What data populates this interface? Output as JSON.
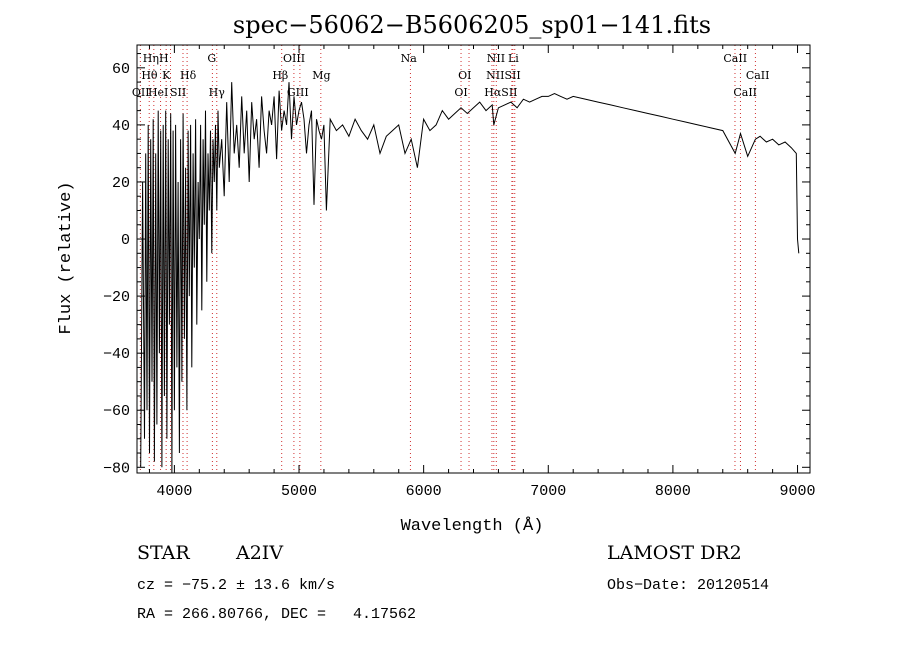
{
  "chart_data": {
    "type": "line",
    "title": "spec−56062−B5606205_sp01−141.fits",
    "xlabel": "Wavelength (Å)",
    "ylabel": "Flux (relative)",
    "xlim": [
      3700,
      9100
    ],
    "ylim": [
      -82,
      68
    ],
    "xticks": [
      4000,
      5000,
      6000,
      7000,
      8000,
      9000
    ],
    "xtick_labels": [
      "4000",
      "5000",
      "6000",
      "7000",
      "8000",
      "9000"
    ],
    "yticks": [
      -80,
      -60,
      -40,
      -20,
      0,
      20,
      40,
      60
    ],
    "ytick_labels": [
      "−80",
      "−60",
      "−40",
      "−20",
      "0",
      "20",
      "40",
      "60"
    ],
    "grid": false,
    "series": [
      {
        "color": "#000000",
        "x": [
          3730,
          3745,
          3760,
          3770,
          3780,
          3790,
          3800,
          3810,
          3820,
          3830,
          3840,
          3850,
          3860,
          3870,
          3880,
          3890,
          3900,
          3910,
          3920,
          3930,
          3940,
          3950,
          3960,
          3970,
          3980,
          3990,
          4000,
          4010,
          4020,
          4030,
          4040,
          4050,
          4060,
          4070,
          4080,
          4090,
          4100,
          4110,
          4120,
          4130,
          4140,
          4150,
          4160,
          4170,
          4180,
          4190,
          4200,
          4210,
          4220,
          4230,
          4240,
          4250,
          4260,
          4270,
          4280,
          4290,
          4300,
          4310,
          4320,
          4330,
          4340,
          4350,
          4360,
          4380,
          4400,
          4420,
          4440,
          4460,
          4480,
          4500,
          4520,
          4540,
          4560,
          4580,
          4600,
          4620,
          4640,
          4660,
          4680,
          4700,
          4720,
          4740,
          4760,
          4780,
          4800,
          4820,
          4840,
          4860,
          4880,
          4900,
          4920,
          4940,
          4960,
          4980,
          5000,
          5020,
          5040,
          5060,
          5080,
          5100,
          5120,
          5140,
          5160,
          5180,
          5200,
          5220,
          5250,
          5300,
          5350,
          5400,
          5450,
          5500,
          5550,
          5600,
          5650,
          5700,
          5750,
          5800,
          5850,
          5900,
          5950,
          6000,
          6050,
          6100,
          6150,
          6200,
          6250,
          6300,
          6350,
          6400,
          6450,
          6500,
          6550,
          6563,
          6600,
          6650,
          6700,
          6750,
          6800,
          6850,
          6900,
          6950,
          7000,
          7050,
          7100,
          7150,
          7200,
          7300,
          7400,
          7500,
          7600,
          7700,
          7800,
          7900,
          8000,
          8100,
          8200,
          8300,
          8400,
          8500,
          8542,
          8600,
          8662,
          8700,
          8750,
          8800,
          8850,
          8900,
          8950,
          8990,
          9000,
          9010
        ],
        "y": [
          -80,
          20,
          -70,
          30,
          -60,
          40,
          -75,
          35,
          -50,
          42,
          -78,
          30,
          -65,
          45,
          -40,
          38,
          -80,
          40,
          -55,
          45,
          -70,
          35,
          -30,
          44,
          -82,
          38,
          -60,
          40,
          -45,
          20,
          -75,
          35,
          -50,
          44,
          -35,
          25,
          -60,
          38,
          -20,
          40,
          -45,
          30,
          -10,
          42,
          -30,
          20,
          0,
          40,
          -25,
          35,
          5,
          45,
          -15,
          30,
          10,
          38,
          -5,
          35,
          20,
          40,
          10,
          45,
          25,
          35,
          15,
          48,
          20,
          55,
          30,
          40,
          25,
          50,
          30,
          45,
          20,
          48,
          35,
          42,
          25,
          50,
          38,
          30,
          45,
          40,
          50,
          28,
          52,
          38,
          45,
          40,
          55,
          35,
          50,
          40,
          45,
          48,
          42,
          30,
          40,
          45,
          12,
          42,
          38,
          35,
          40,
          10,
          42,
          38,
          40,
          36,
          42,
          38,
          35,
          40,
          30,
          36,
          38,
          40,
          30,
          35,
          25,
          42,
          38,
          40,
          45,
          42,
          44,
          46,
          44,
          46,
          48,
          45,
          47,
          40,
          46,
          47,
          48,
          46,
          49,
          48,
          49,
          50,
          50,
          51,
          50,
          49,
          50,
          49,
          48,
          47,
          46,
          45,
          44,
          43,
          42,
          41,
          40,
          39,
          38,
          30,
          37,
          29,
          35,
          36,
          34,
          35,
          33,
          34,
          32,
          30,
          0,
          -5
        ]
      }
    ],
    "line_marks": [
      {
        "label": "OII",
        "x": 3727
      },
      {
        "label": "Hθ",
        "x": 3798
      },
      {
        "label": "Hη",
        "x": 3835
      },
      {
        "label": "HeI",
        "x": 3889
      },
      {
        "label": "K",
        "x": 3934
      },
      {
        "label": "SII",
        "x": 4069
      },
      {
        "label": "H",
        "x": 3969
      },
      {
        "label": "Hδ",
        "x": 4102
      },
      {
        "label": "G",
        "x": 4305
      },
      {
        "label": "Hγ",
        "x": 4340
      },
      {
        "label": "Hβ",
        "x": 4861
      },
      {
        "label": "OIII",
        "x": 4959
      },
      {
        "label": "OIII",
        "x": 5007
      },
      {
        "label": "Mg",
        "x": 5175
      },
      {
        "label": "Na",
        "x": 5894
      },
      {
        "label": "OI",
        "x": 6300
      },
      {
        "label": "OI",
        "x": 6364
      },
      {
        "label": "NII",
        "x": 6548
      },
      {
        "label": "Hα",
        "x": 6563
      },
      {
        "label": "NII",
        "x": 6583
      },
      {
        "label": "Li",
        "x": 6708
      },
      {
        "label": "SII",
        "x": 6716
      },
      {
        "label": "SII",
        "x": 6731
      },
      {
        "label": "CaII",
        "x": 8498
      },
      {
        "label": "CaII",
        "x": 8542
      },
      {
        "label": "CaII",
        "x": 8662
      }
    ],
    "mark_labels": [
      {
        "text": "HηH",
        "x": 3850,
        "row": 1
      },
      {
        "text": "Hθ",
        "x": 3800,
        "row": 2
      },
      {
        "text": "K",
        "x": 3935,
        "row": 2
      },
      {
        "text": "Hδ",
        "x": 4110,
        "row": 2
      },
      {
        "text": "OII",
        "x": 3730,
        "row": 3
      },
      {
        "text": "HeI",
        "x": 3870,
        "row": 3
      },
      {
        "text": "SII",
        "x": 4030,
        "row": 3
      },
      {
        "text": "G",
        "x": 4300,
        "row": 1
      },
      {
        "text": "Hγ",
        "x": 4340,
        "row": 3
      },
      {
        "text": "OIII",
        "x": 4960,
        "row": 1
      },
      {
        "text": "Hβ",
        "x": 4850,
        "row": 2
      },
      {
        "text": "Mg",
        "x": 5180,
        "row": 2
      },
      {
        "text": "GIII",
        "x": 4990,
        "row": 3
      },
      {
        "text": "Na",
        "x": 5880,
        "row": 1
      },
      {
        "text": "NII",
        "x": 6580,
        "row": 1
      },
      {
        "text": "Li",
        "x": 6720,
        "row": 1
      },
      {
        "text": "OI",
        "x": 6330,
        "row": 2
      },
      {
        "text": "NIISII",
        "x": 6640,
        "row": 2
      },
      {
        "text": "OI",
        "x": 6300,
        "row": 3
      },
      {
        "text": "HαSII",
        "x": 6620,
        "row": 3
      },
      {
        "text": "CaII",
        "x": 8500,
        "row": 1
      },
      {
        "text": "CaII",
        "x": 8680,
        "row": 2
      },
      {
        "text": "CaII",
        "x": 8580,
        "row": 3
      }
    ]
  },
  "info": {
    "object_class": "STAR",
    "subclass": "A2IV",
    "survey": "LAMOST DR2",
    "cz": "cz = −75.2 ± 13.6 km/s",
    "obs_date": "Obs−Date: 20120514",
    "coords": "RA = 266.80766, DEC =   4.17562"
  }
}
